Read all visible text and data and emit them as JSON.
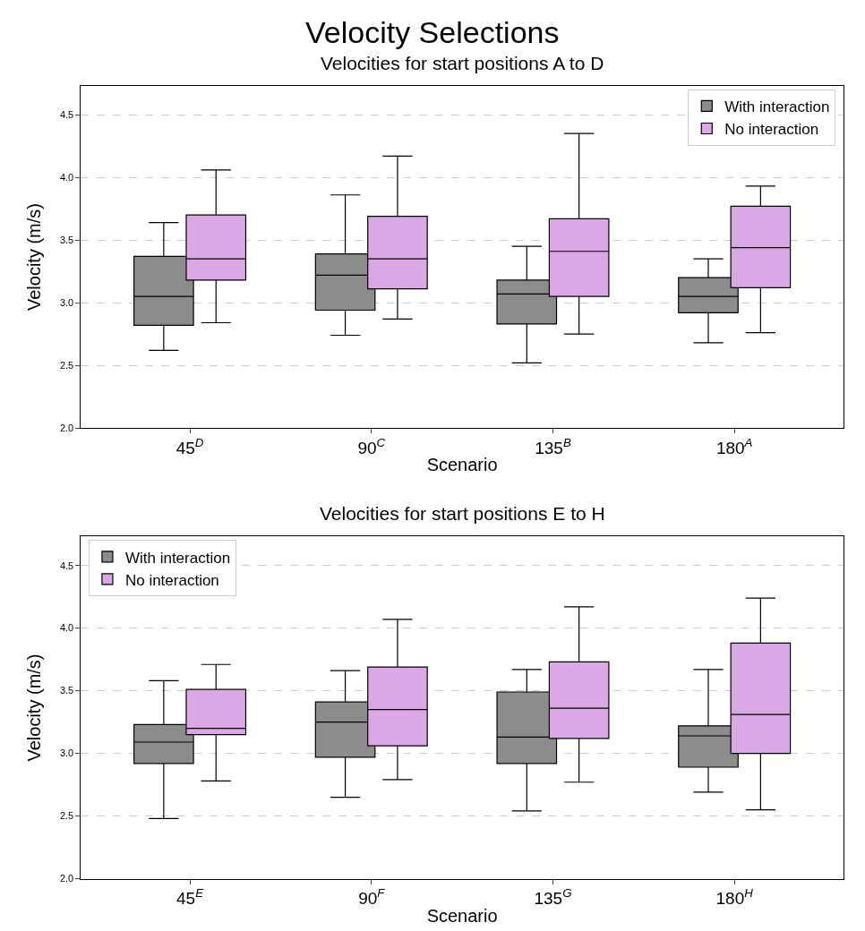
{
  "chart_data": [
    {
      "type": "box",
      "title": "Velocities for start positions A to D",
      "xlabel": "Scenario",
      "ylabel": "Velocity (m/s)",
      "annotations": [
        "Velocity Selections"
      ],
      "categories": [
        "45$^{D}$",
        "90$^{C}$",
        "135$^{B}$",
        "180$^{A}$"
      ],
      "ylim": [
        2.0,
        4.73
      ],
      "yticks": [
        {
          "value": 2,
          "label": "2.0"
        },
        2.5,
        {
          "value": 3,
          "label": "3.0"
        },
        3.5,
        {
          "value": 4,
          "label": "4.0"
        },
        4.5
      ],
      "grid": "y",
      "legend": "top right",
      "series": [
        {
          "name": "With interaction",
          "color": "#8c8c8c",
          "boxes": [
            {
              "low": 2.62,
              "q1": 2.82,
              "median": 3.05,
              "q3": 3.37,
              "high": 3.64
            },
            {
              "low": 2.74,
              "q1": 2.94,
              "median": 3.22,
              "q3": 3.39,
              "high": 3.86
            },
            {
              "low": 2.52,
              "q1": 2.83,
              "median": 3.07,
              "q3": 3.18,
              "high": 3.45
            },
            {
              "low": 2.68,
              "q1": 2.92,
              "median": 3.05,
              "q3": 3.2,
              "high": 3.35
            }
          ]
        },
        {
          "name": "No interaction",
          "color": "#dba8e6",
          "boxes": [
            {
              "low": 2.84,
              "q1": 3.18,
              "median": 3.35,
              "q3": 3.7,
              "high": 4.06
            },
            {
              "low": 2.87,
              "q1": 3.11,
              "median": 3.35,
              "q3": 3.69,
              "high": 4.17
            },
            {
              "low": 2.75,
              "q1": 3.05,
              "median": 3.41,
              "q3": 3.67,
              "high": 4.35
            },
            {
              "low": 2.76,
              "q1": 3.12,
              "median": 3.44,
              "q3": 3.77,
              "high": 3.93
            }
          ]
        }
      ]
    },
    {
      "type": "box",
      "title": "Velocities for start positions E to H",
      "xlabel": "Scenario",
      "ylabel": "Velocity (m/s)",
      "categories": [
        "45$^{E}$",
        "90$^{F}$",
        "135$^{G}$",
        "180$^{H}$"
      ],
      "ylim": [
        2.0,
        4.73
      ],
      "yticks": [
        {
          "value": 2,
          "label": "2.0"
        },
        2.5,
        {
          "value": 3,
          "label": "3.0"
        },
        3.5,
        {
          "value": 4,
          "label": "4.0"
        },
        4.5
      ],
      "grid": "y",
      "legend": "top left",
      "series": [
        {
          "name": "With interaction",
          "color": "#8c8c8c",
          "boxes": [
            {
              "low": 2.48,
              "q1": 2.92,
              "median": 3.09,
              "q3": 3.23,
              "high": 3.58
            },
            {
              "low": 2.65,
              "q1": 2.97,
              "median": 3.25,
              "q3": 3.41,
              "high": 3.66
            },
            {
              "low": 2.54,
              "q1": 2.92,
              "median": 3.13,
              "q3": 3.49,
              "high": 3.67
            },
            {
              "low": 2.69,
              "q1": 2.89,
              "median": 3.14,
              "q3": 3.22,
              "high": 3.67
            }
          ]
        },
        {
          "name": "No interaction",
          "color": "#dba8e6",
          "boxes": [
            {
              "low": 2.78,
              "q1": 3.15,
              "median": 3.2,
              "q3": 3.51,
              "high": 3.71
            },
            {
              "low": 2.79,
              "q1": 3.06,
              "median": 3.35,
              "q3": 3.69,
              "high": 4.07
            },
            {
              "low": 2.77,
              "q1": 3.12,
              "median": 3.36,
              "q3": 3.73,
              "high": 4.17
            },
            {
              "low": 2.55,
              "q1": 3.0,
              "median": 3.31,
              "q3": 3.88,
              "high": 4.24
            }
          ]
        }
      ]
    }
  ]
}
